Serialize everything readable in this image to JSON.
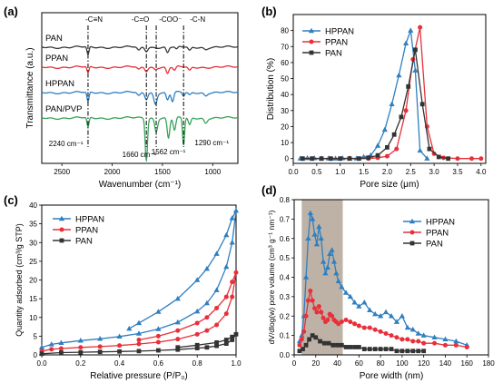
{
  "chart_data": [
    {
      "id": "a",
      "panel_label": "(a)",
      "type": "line",
      "xlabel": "Wavenumber (cm⁻¹)",
      "ylabel": "Transmittance (a.u.)",
      "xlim": [
        2700,
        750
      ],
      "x_ticks": [
        2500,
        2000,
        1500,
        1000
      ],
      "grid": false,
      "series": [
        {
          "name": "PAN",
          "color": "#3a3a3a"
        },
        {
          "name": "PPAN",
          "color": "#e8303a"
        },
        {
          "name": "HPPAN",
          "color": "#2f7fc1"
        },
        {
          "name": "PAN/PVP",
          "color": "#3aa35a"
        }
      ],
      "group_labels": [
        "-C≡N",
        "-C=O",
        "-COO⁻",
        "-C-N"
      ],
      "peak_labels": [
        {
          "text": "2240 cm⁻¹",
          "x": 2240
        },
        {
          "text": "1660 cm⁻¹",
          "x": 1660
        },
        {
          "text": "1562 cm⁻¹",
          "x": 1562
        },
        {
          "text": "1290 cm⁻¹",
          "x": 1290
        }
      ]
    },
    {
      "id": "b",
      "panel_label": "(b)",
      "type": "line",
      "xlabel": "Pore size (μm)",
      "ylabel": "Distribution (%)",
      "xlim": [
        0,
        4.1
      ],
      "ylim": [
        -3,
        90
      ],
      "x_ticks": [
        0.0,
        0.5,
        1.0,
        1.5,
        2.0,
        2.5,
        3.0,
        3.5,
        4.0
      ],
      "y_ticks": [
        0,
        10,
        20,
        30,
        40,
        50,
        60,
        70,
        80
      ],
      "legend": "top-left",
      "series": [
        {
          "name": "HPPAN",
          "color": "#2f7fc1",
          "marker": "triangle",
          "x": [
            0.15,
            0.3,
            0.45,
            0.6,
            0.75,
            0.9,
            1.05,
            1.2,
            1.35,
            1.5,
            1.65,
            1.8,
            1.95,
            2.1,
            2.25,
            2.4,
            2.5,
            2.6,
            2.7,
            2.85
          ],
          "y": [
            0,
            0.3,
            0.2,
            0,
            0.1,
            0,
            0.2,
            0,
            0.1,
            1,
            2,
            8,
            18,
            34,
            52,
            72,
            80,
            55,
            5,
            0
          ]
        },
        {
          "name": "PPAN",
          "color": "#e8303a",
          "marker": "circle",
          "x": [
            0.2,
            0.4,
            0.6,
            0.8,
            1.0,
            1.2,
            1.4,
            1.6,
            1.8,
            2.0,
            2.2,
            2.4,
            2.55,
            2.7,
            2.85,
            3.0,
            3.2,
            3.5,
            3.8,
            4.0
          ],
          "y": [
            0,
            0,
            0,
            0,
            0,
            0.2,
            0,
            0,
            0.5,
            1.5,
            6,
            30,
            62,
            82,
            20,
            3,
            0.5,
            0,
            0,
            0
          ]
        },
        {
          "name": "PAN",
          "color": "#333333",
          "marker": "square",
          "x": [
            0.2,
            0.4,
            0.6,
            0.8,
            1.0,
            1.2,
            1.4,
            1.6,
            1.8,
            2.0,
            2.15,
            2.3,
            2.45,
            2.6,
            2.75,
            2.9,
            3.1,
            3.3
          ],
          "y": [
            0,
            0,
            0,
            0,
            0,
            0,
            0,
            0.5,
            2,
            7,
            15,
            26,
            45,
            68,
            34,
            6,
            1,
            0
          ]
        }
      ]
    },
    {
      "id": "c",
      "panel_label": "(c)",
      "type": "line",
      "xlabel": "Relative pressure (P/P₀)",
      "ylabel": "Quantity adsorbed (cm³/g STP)",
      "xlim": [
        0,
        1.0
      ],
      "ylim": [
        0,
        40
      ],
      "x_ticks": [
        0.0,
        0.2,
        0.4,
        0.6,
        0.8,
        1.0
      ],
      "y_ticks": [
        0,
        5,
        10,
        15,
        20,
        25,
        30,
        35,
        40
      ],
      "legend": "top-left",
      "series": [
        {
          "name": "HPPAN",
          "color": "#2f7fc1",
          "marker": "triangle",
          "x": [
            0.0,
            0.05,
            0.1,
            0.2,
            0.3,
            0.4,
            0.5,
            0.6,
            0.7,
            0.8,
            0.85,
            0.9,
            0.95,
            0.98,
            1.0,
            0.98,
            0.95,
            0.9,
            0.85,
            0.8,
            0.7,
            0.6,
            0.5,
            0.45
          ],
          "y": [
            2.0,
            2.8,
            3.2,
            3.8,
            4.3,
            4.9,
            5.7,
            6.9,
            8.7,
            11.6,
            13.8,
            17.3,
            23.5,
            30.0,
            38.5,
            36.5,
            32.0,
            27.0,
            23.0,
            20.0,
            15.0,
            11.5,
            8.5,
            7.0
          ]
        },
        {
          "name": "PPAN",
          "color": "#e8303a",
          "marker": "circle",
          "x": [
            0.0,
            0.05,
            0.1,
            0.2,
            0.3,
            0.4,
            0.5,
            0.6,
            0.7,
            0.8,
            0.85,
            0.9,
            0.95,
            0.98,
            1.0,
            0.98,
            0.95,
            0.9,
            0.85,
            0.8,
            0.7,
            0.6,
            0.5
          ],
          "y": [
            1.0,
            1.5,
            1.7,
            2.0,
            2.2,
            2.5,
            2.9,
            3.4,
            4.2,
            5.5,
            6.5,
            8.0,
            11.0,
            15.5,
            22.0,
            19.5,
            15.5,
            12.5,
            10.0,
            8.5,
            6.5,
            5.0,
            4.0
          ]
        },
        {
          "name": "PAN",
          "color": "#333333",
          "marker": "square",
          "x": [
            0.0,
            0.1,
            0.2,
            0.3,
            0.4,
            0.5,
            0.6,
            0.7,
            0.8,
            0.85,
            0.9,
            0.95,
            0.98,
            1.0,
            0.98,
            0.95,
            0.9,
            0.8,
            0.7
          ],
          "y": [
            0.3,
            0.6,
            0.7,
            0.8,
            0.9,
            1.0,
            1.2,
            1.4,
            1.8,
            2.0,
            2.4,
            3.0,
            4.0,
            5.5,
            4.8,
            4.0,
            3.3,
            2.6,
            2.0
          ]
        }
      ]
    },
    {
      "id": "d",
      "panel_label": "(d)",
      "type": "line",
      "xlabel": "Pore width (nm)",
      "ylabel": "dV/dlog(w) pore volume (cm³ g⁻¹ nm⁻¹)",
      "xlim": [
        0,
        180
      ],
      "ylim": [
        0,
        0.8
      ],
      "x_ticks": [
        0,
        20,
        40,
        60,
        80,
        100,
        120,
        140,
        160,
        180
      ],
      "y_ticks": [
        0.0,
        0.1,
        0.2,
        0.3,
        0.4,
        0.5,
        0.6,
        0.7,
        0.8
      ],
      "legend": "top-right",
      "shaded_range": [
        7,
        45
      ],
      "shade_color": "#a89888",
      "series": [
        {
          "name": "HPPAN",
          "color": "#2f7fc1",
          "marker": "triangle",
          "x": [
            5,
            7,
            9,
            11,
            13,
            15,
            17,
            19,
            21,
            23,
            25,
            27,
            29,
            31,
            33,
            35,
            37,
            39,
            41,
            44,
            48,
            52,
            56,
            60,
            65,
            70,
            75,
            80,
            85,
            90,
            95,
            100,
            105,
            110,
            115,
            120,
            130,
            140,
            150,
            160
          ],
          "y": [
            0.07,
            0.1,
            0.2,
            0.4,
            0.6,
            0.73,
            0.7,
            0.62,
            0.57,
            0.66,
            0.6,
            0.48,
            0.42,
            0.45,
            0.52,
            0.54,
            0.48,
            0.42,
            0.38,
            0.35,
            0.32,
            0.3,
            0.27,
            0.25,
            0.27,
            0.23,
            0.21,
            0.2,
            0.22,
            0.2,
            0.17,
            0.2,
            0.14,
            0.13,
            0.11,
            0.1,
            0.09,
            0.08,
            0.07,
            0.05
          ]
        },
        {
          "name": "PPAN",
          "color": "#e8303a",
          "marker": "circle",
          "x": [
            5,
            7,
            9,
            11,
            13,
            15,
            17,
            19,
            21,
            23,
            25,
            27,
            29,
            31,
            33,
            35,
            37,
            39,
            41,
            44,
            48,
            52,
            56,
            60,
            65,
            70,
            75,
            80,
            85,
            90,
            95,
            100,
            105,
            110,
            115,
            120,
            130,
            140,
            150,
            160
          ],
          "y": [
            0.05,
            0.08,
            0.12,
            0.2,
            0.28,
            0.33,
            0.28,
            0.24,
            0.22,
            0.25,
            0.22,
            0.19,
            0.17,
            0.18,
            0.21,
            0.2,
            0.18,
            0.17,
            0.16,
            0.17,
            0.18,
            0.17,
            0.16,
            0.15,
            0.14,
            0.14,
            0.13,
            0.12,
            0.11,
            0.1,
            0.09,
            0.08,
            0.08,
            0.07,
            0.07,
            0.06,
            0.06,
            0.05,
            0.05,
            0.04
          ]
        },
        {
          "name": "PAN",
          "color": "#333333",
          "marker": "square",
          "x": [
            5,
            8,
            11,
            14,
            17,
            20,
            24,
            28,
            32,
            36,
            40,
            44,
            48,
            52,
            56,
            60,
            65,
            70,
            75,
            80,
            85,
            90,
            95,
            100,
            105,
            110,
            115,
            120
          ],
          "y": [
            0.02,
            0.03,
            0.05,
            0.08,
            0.1,
            0.09,
            0.07,
            0.06,
            0.06,
            0.05,
            0.05,
            0.05,
            0.04,
            0.04,
            0.04,
            0.04,
            0.03,
            0.03,
            0.03,
            0.03,
            0.03,
            0.03,
            0.02,
            0.02,
            0.02,
            0.02,
            0.02,
            0.02
          ]
        }
      ]
    }
  ]
}
